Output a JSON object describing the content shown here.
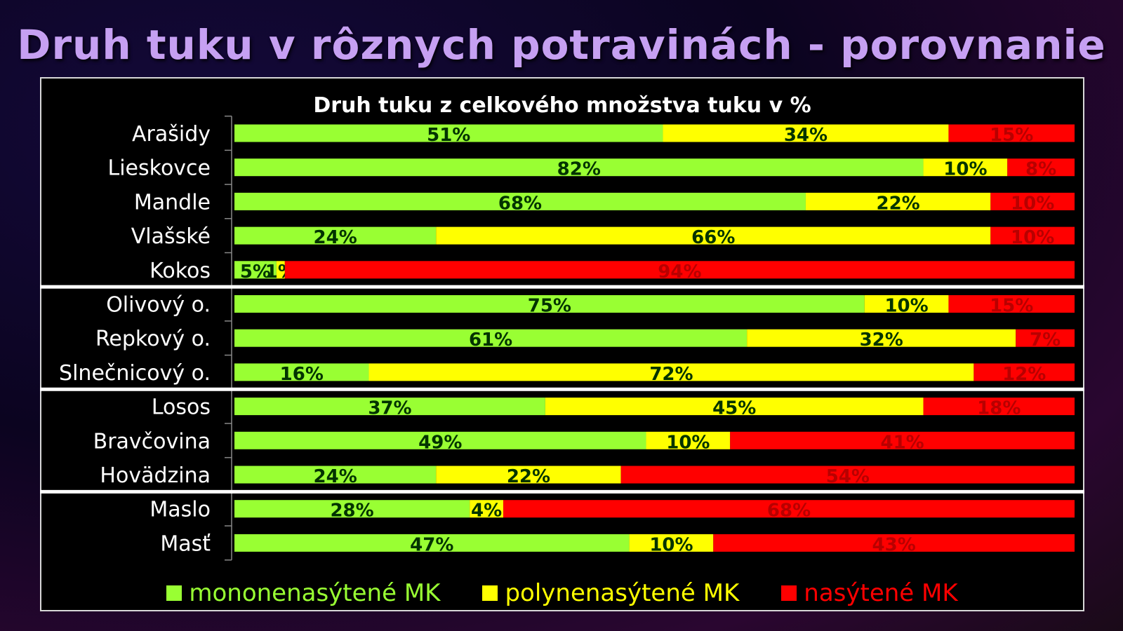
{
  "page": {
    "title": "Druh tuku v rôznych potravinách - porovnanie"
  },
  "chart_data": {
    "type": "bar",
    "orientation": "horizontal",
    "stacked": "percent",
    "title": "Druh tuku z celkového množstva tuku v %",
    "categories": [
      "Arašidy",
      "Lieskovce",
      "Mandle",
      "Vlašské",
      "Kokos",
      "Olivový o.",
      "Repkový o.",
      "Slnečnicový o.",
      "Losos",
      "Bravčovina",
      "Hovädzina",
      "Maslo",
      "Masť"
    ],
    "groups": [
      [
        0,
        1,
        2,
        3,
        4
      ],
      [
        5,
        6,
        7
      ],
      [
        8,
        9,
        10
      ],
      [
        11,
        12
      ]
    ],
    "series": [
      {
        "name": "mononenasýtené MK",
        "color": "#99ff33",
        "values": [
          51,
          82,
          68,
          24,
          5,
          75,
          61,
          16,
          37,
          49,
          24,
          28,
          47
        ]
      },
      {
        "name": "polynenasýtené MK",
        "color": "#ffff00",
        "values": [
          34,
          10,
          22,
          66,
          1,
          10,
          32,
          72,
          45,
          10,
          22,
          4,
          10
        ]
      },
      {
        "name": "nasýtené MK",
        "color": "#ff0000",
        "values": [
          15,
          8,
          10,
          10,
          94,
          15,
          7,
          12,
          18,
          41,
          54,
          68,
          43
        ]
      }
    ],
    "value_suffix": "%",
    "legend_position": "bottom",
    "grid": false
  }
}
